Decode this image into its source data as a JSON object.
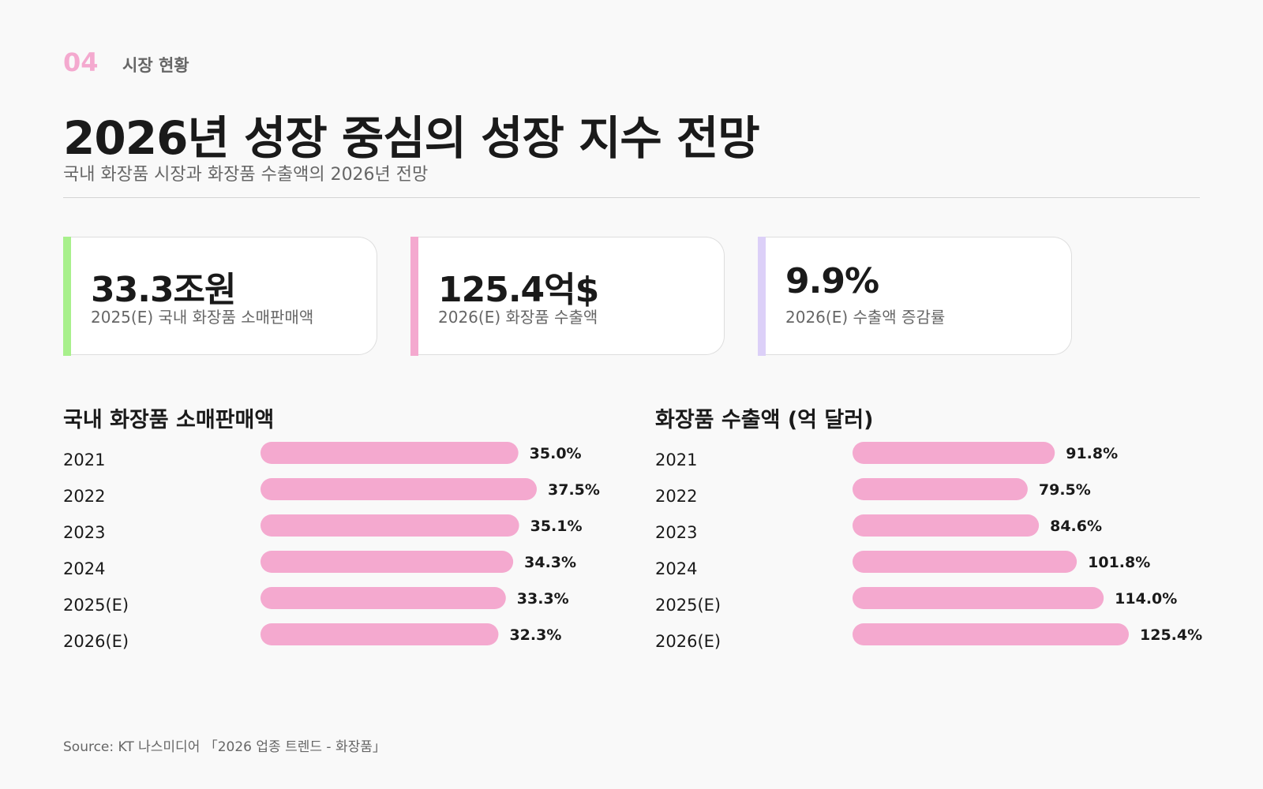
{
  "section": {
    "number": "04",
    "label": "시장 현황"
  },
  "title": "2026년 성장 중심의 성장 지수 전망",
  "subtitle": "국내 화장품 시장과 화장품 수출액의 2026년 전망",
  "kpis": [
    {
      "value": "33.3조원",
      "label": "2025(E) 국내 화장품 소매판매액",
      "accent": "#a8f08c"
    },
    {
      "value": "125.4억$",
      "label": "2026(E) 화장품 수출액",
      "accent": "#f4a9cf"
    },
    {
      "value": "9.9%",
      "label": "2026(E) 수출액 증감률",
      "accent": "#dcd0f8"
    }
  ],
  "bar_color": "#f4a9cf",
  "chart_data": [
    {
      "type": "bar",
      "orientation": "horizontal",
      "title": "국내 화장품 소매판매액",
      "categories": [
        "2021",
        "2022",
        "2023",
        "2024",
        "2025(E)",
        "2026(E)"
      ],
      "values": [
        35.0,
        37.5,
        35.1,
        34.3,
        33.3,
        32.3
      ],
      "value_labels": [
        "35.0%",
        "37.5%",
        "35.1%",
        "34.3%",
        "33.3%",
        "32.3%"
      ],
      "xlim": [
        0,
        37.5
      ],
      "grid": false,
      "legend": "none"
    },
    {
      "type": "bar",
      "orientation": "horizontal",
      "title": "화장품 수출액 (억 달러)",
      "categories": [
        "2021",
        "2022",
        "2023",
        "2024",
        "2025(E)",
        "2026(E)"
      ],
      "values": [
        91.8,
        79.5,
        84.6,
        101.8,
        114.0,
        125.4
      ],
      "value_labels": [
        "91.8%",
        "79.5%",
        "84.6%",
        "101.8%",
        "114.0%",
        "125.4%"
      ],
      "xlim": [
        0,
        125.4
      ],
      "grid": false,
      "legend": "none"
    }
  ],
  "source": "Source: KT 나스미디어 「2026 업종 트렌드 - 화장품」"
}
